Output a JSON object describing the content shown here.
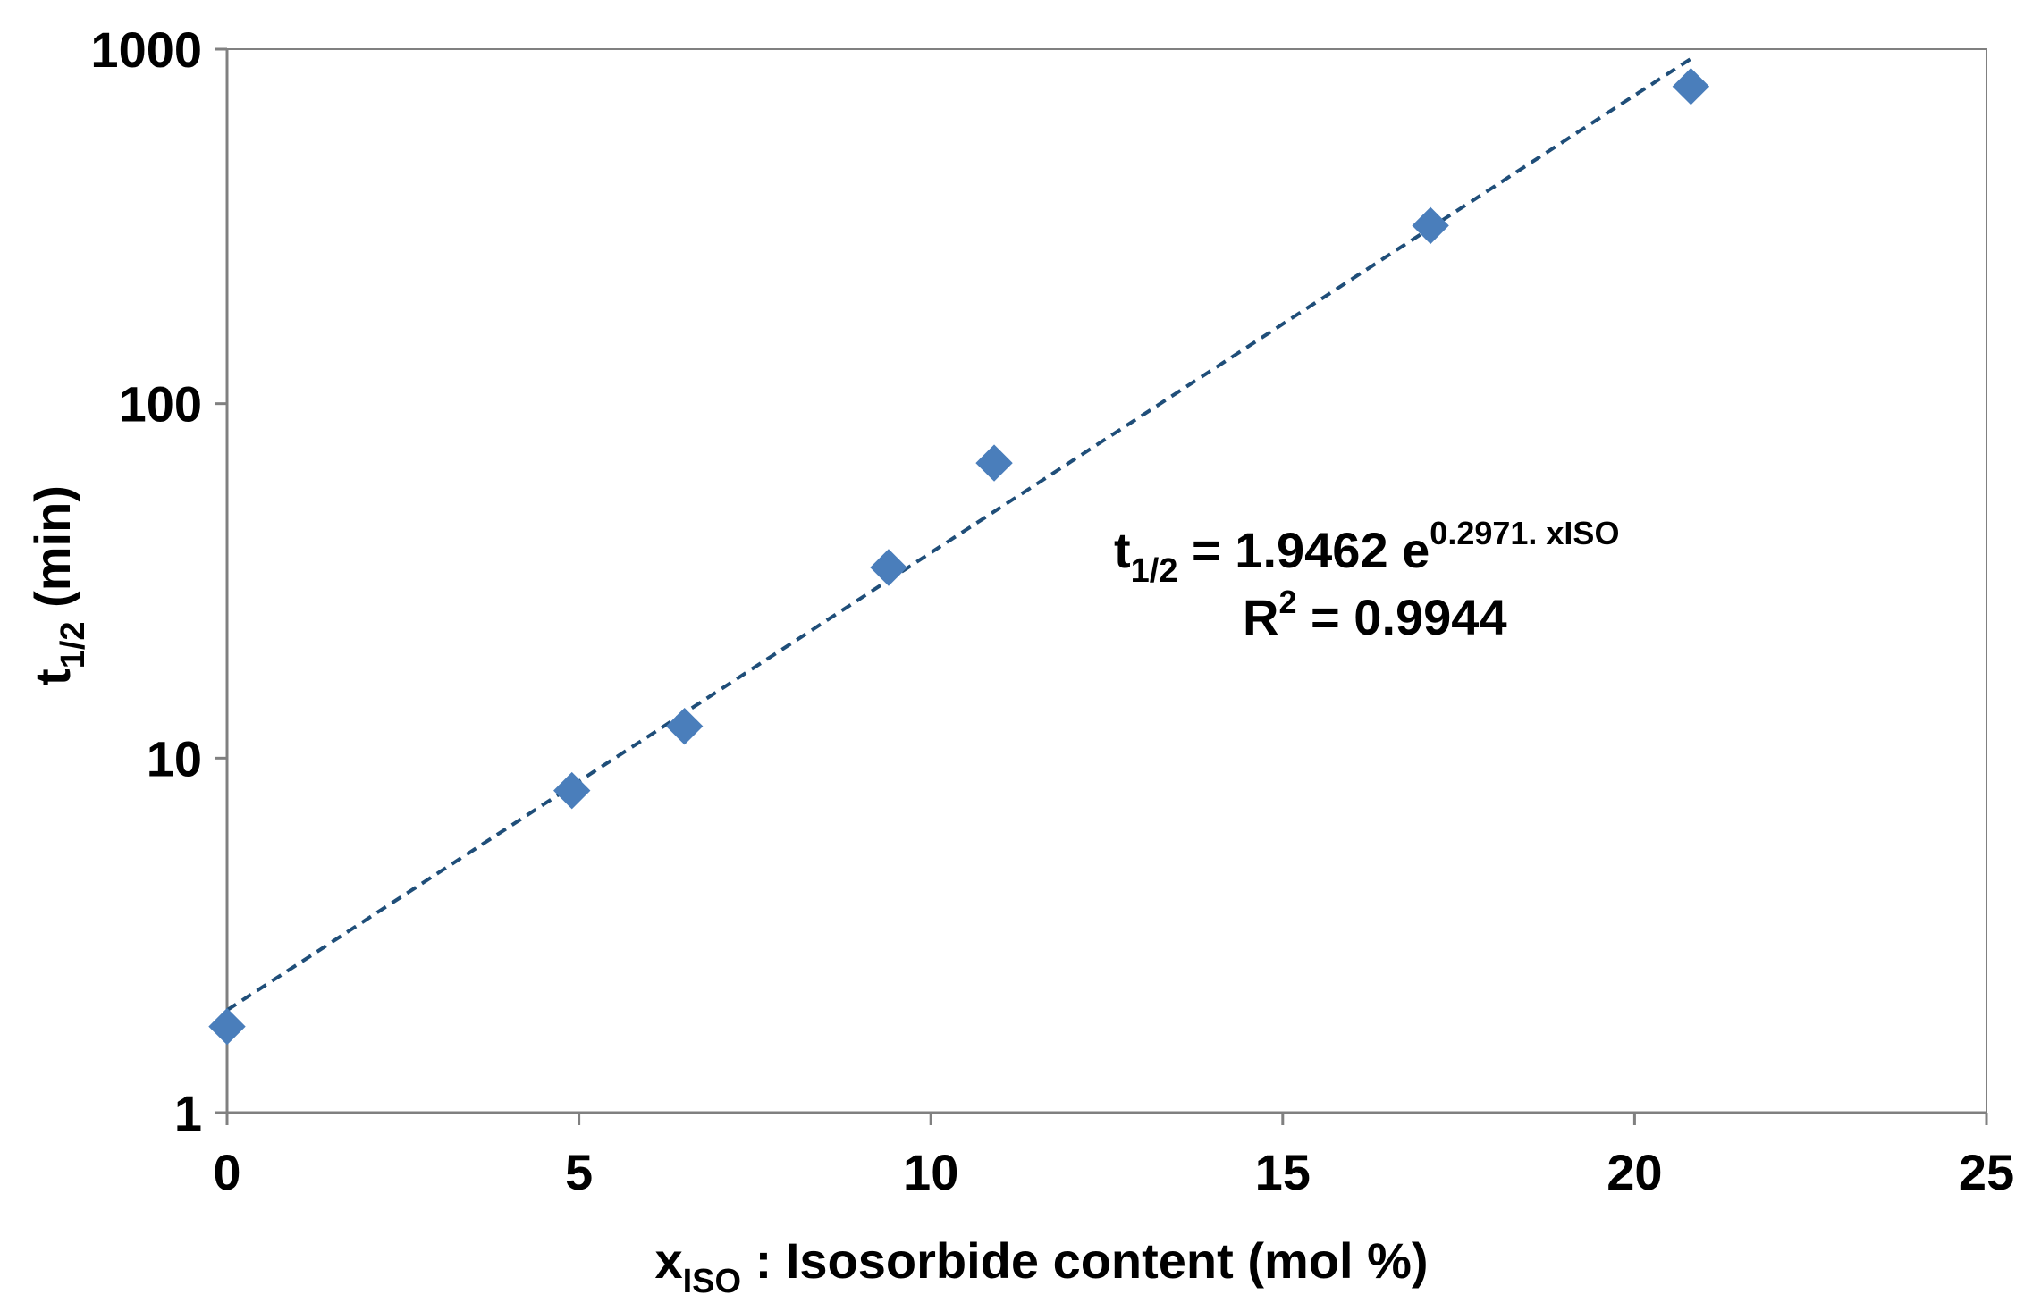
{
  "chart_data": {
    "type": "scatter",
    "y_scale": "log",
    "xlim": [
      0,
      25
    ],
    "ylim": [
      1,
      1000
    ],
    "x_ticks": [
      0,
      5,
      10,
      15,
      20,
      25
    ],
    "x_tick_labels": [
      "0",
      "5",
      "10",
      "15",
      "20",
      "25"
    ],
    "y_ticks": [
      1,
      10,
      100,
      1000
    ],
    "y_tick_labels": [
      "1",
      "10",
      "100",
      "1000"
    ],
    "grid": false,
    "xlabel": {
      "main": "x",
      "sub": "ISO",
      "rest": " : Isosorbide content (mol %)"
    },
    "ylabel": {
      "main": "t",
      "sub": "1/2",
      "rest": " (min)"
    },
    "series": [
      {
        "marker": "diamond",
        "color": "#4a7ebb",
        "points": [
          {
            "x": 0,
            "y": 1.75
          },
          {
            "x": 4.9,
            "y": 8.1
          },
          {
            "x": 6.5,
            "y": 12.3
          },
          {
            "x": 9.4,
            "y": 34.5
          },
          {
            "x": 10.9,
            "y": 68
          },
          {
            "x": 17.1,
            "y": 318
          },
          {
            "x": 20.8,
            "y": 785
          }
        ]
      }
    ],
    "trendline": {
      "type": "exponential",
      "a": 1.9462,
      "b": 0.2971,
      "x_range": [
        0,
        20.8
      ],
      "style": "dashed",
      "color": "#1f4e79"
    },
    "annotations": {
      "equation": {
        "lhs_main": "t",
        "lhs_sub": "1/2",
        "mid": " = 1.9462 e",
        "sup": "0.2971. xISO"
      },
      "r_squared": {
        "main": "R",
        "sup": "2",
        "rest": " = 0.9944"
      }
    }
  }
}
